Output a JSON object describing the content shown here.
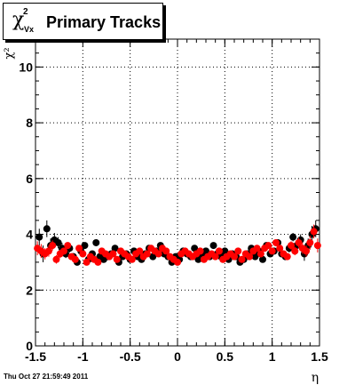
{
  "title": {
    "symbol": "χ",
    "superscript": "2",
    "subscript": "Vx",
    "text": "Primary Tracks"
  },
  "timestamp": "Thu Oct 27 21:59:49 2011",
  "chart_data": {
    "type": "scatter",
    "xlabel": "η",
    "ylabel": "χ²",
    "xlim": [
      -1.5,
      1.5
    ],
    "ylim": [
      0,
      11
    ],
    "xticks": [
      -1.5,
      -1,
      -0.5,
      0,
      0.5,
      1,
      1.5
    ],
    "xtick_labels": [
      "-1.5",
      "-1",
      "-0.5",
      "0",
      "0.5",
      "1",
      "1.5"
    ],
    "yticks": [
      0,
      2,
      4,
      6,
      8,
      10
    ],
    "ytick_labels": [
      "0",
      "2",
      "4",
      "6",
      "8",
      "10"
    ],
    "grid": true,
    "series": [
      {
        "color": "#000000",
        "x": [
          -1.46,
          -1.42,
          -1.38,
          -1.34,
          -1.3,
          -1.26,
          -1.22,
          -1.18,
          -1.14,
          -1.1,
          -1.06,
          -1.02,
          -0.98,
          -0.94,
          -0.9,
          -0.86,
          -0.82,
          -0.78,
          -0.74,
          -0.7,
          -0.66,
          -0.62,
          -0.58,
          -0.54,
          -0.5,
          -0.46,
          -0.42,
          -0.38,
          -0.34,
          -0.3,
          -0.26,
          -0.22,
          -0.18,
          -0.14,
          -0.1,
          -0.06,
          -0.02,
          0.02,
          0.06,
          0.1,
          0.14,
          0.18,
          0.22,
          0.26,
          0.3,
          0.34,
          0.38,
          0.42,
          0.46,
          0.5,
          0.54,
          0.58,
          0.62,
          0.66,
          0.7,
          0.74,
          0.78,
          0.82,
          0.86,
          0.9,
          0.94,
          0.98,
          1.02,
          1.06,
          1.1,
          1.14,
          1.18,
          1.22,
          1.26,
          1.3,
          1.34,
          1.38,
          1.42,
          1.46
        ],
        "y": [
          3.9,
          3.3,
          4.2,
          3.6,
          3.8,
          3.7,
          3.5,
          3.3,
          3.5,
          3.2,
          3.0,
          3.4,
          3.6,
          3.1,
          3.3,
          3.7,
          3.2,
          3.1,
          3.2,
          3.3,
          3.5,
          3.0,
          3.2,
          3.3,
          3.1,
          3.4,
          3.2,
          3.1,
          3.3,
          3.5,
          3.2,
          3.4,
          3.6,
          3.3,
          3.2,
          3.0,
          3.2,
          3.1,
          3.4,
          3.3,
          3.2,
          3.5,
          3.1,
          3.3,
          3.4,
          3.2,
          3.6,
          3.3,
          3.2,
          3.4,
          3.1,
          3.3,
          3.2,
          3.0,
          3.1,
          3.3,
          3.5,
          3.2,
          3.4,
          3.1,
          3.6,
          3.3,
          3.4,
          3.7,
          3.3,
          3.2,
          3.5,
          3.9,
          3.6,
          3.8,
          3.3,
          3.6,
          4.0,
          4.2
        ],
        "yerr": [
          0.3,
          0.3,
          0.3,
          0.25,
          0.25,
          0.2,
          0.2,
          0.15,
          0.15,
          0.12,
          0.12,
          0.1,
          0.1,
          0.08,
          0.08,
          0.08,
          0.08,
          0.08,
          0.08,
          0.08,
          0.08,
          0.08,
          0.08,
          0.08,
          0.08,
          0.08,
          0.08,
          0.08,
          0.08,
          0.08,
          0.08,
          0.08,
          0.08,
          0.08,
          0.08,
          0.08,
          0.08,
          0.08,
          0.08,
          0.08,
          0.08,
          0.08,
          0.08,
          0.08,
          0.08,
          0.08,
          0.08,
          0.08,
          0.08,
          0.08,
          0.08,
          0.08,
          0.08,
          0.08,
          0.08,
          0.08,
          0.08,
          0.08,
          0.08,
          0.08,
          0.08,
          0.08,
          0.1,
          0.1,
          0.12,
          0.12,
          0.15,
          0.15,
          0.2,
          0.2,
          0.25,
          0.25,
          0.3,
          0.3
        ]
      },
      {
        "color": "#ff0000",
        "x": [
          -1.48,
          -1.44,
          -1.4,
          -1.36,
          -1.32,
          -1.28,
          -1.24,
          -1.2,
          -1.16,
          -1.12,
          -1.08,
          -1.04,
          -1.0,
          -0.96,
          -0.92,
          -0.88,
          -0.84,
          -0.8,
          -0.76,
          -0.72,
          -0.68,
          -0.64,
          -0.6,
          -0.56,
          -0.52,
          -0.48,
          -0.44,
          -0.4,
          -0.36,
          -0.32,
          -0.28,
          -0.24,
          -0.2,
          -0.16,
          -0.12,
          -0.08,
          -0.04,
          0.0,
          0.04,
          0.08,
          0.12,
          0.16,
          0.2,
          0.24,
          0.28,
          0.32,
          0.36,
          0.4,
          0.44,
          0.48,
          0.52,
          0.56,
          0.6,
          0.64,
          0.68,
          0.72,
          0.76,
          0.8,
          0.84,
          0.88,
          0.92,
          0.96,
          1.0,
          1.04,
          1.08,
          1.12,
          1.16,
          1.2,
          1.24,
          1.28,
          1.32,
          1.36,
          1.4,
          1.44,
          1.48
        ],
        "y": [
          3.5,
          3.4,
          3.3,
          3.4,
          3.6,
          3.1,
          3.3,
          3.4,
          3.6,
          3.2,
          3.1,
          3.5,
          3.3,
          3.0,
          3.2,
          3.1,
          3.0,
          3.4,
          3.3,
          3.2,
          3.3,
          3.1,
          3.4,
          3.3,
          3.2,
          3.1,
          3.3,
          3.4,
          3.2,
          3.3,
          3.5,
          3.4,
          3.3,
          3.5,
          3.4,
          3.2,
          3.1,
          3.0,
          3.3,
          3.4,
          3.3,
          3.2,
          3.3,
          3.4,
          3.1,
          3.2,
          3.3,
          3.2,
          3.4,
          3.1,
          3.2,
          3.3,
          3.2,
          3.4,
          3.1,
          3.3,
          3.2,
          3.4,
          3.5,
          3.3,
          3.5,
          3.6,
          3.4,
          3.7,
          3.5,
          3.3,
          3.2,
          3.6,
          3.4,
          3.7,
          3.5,
          3.4,
          3.7,
          4.1,
          3.6
        ],
        "yerr": [
          0.25,
          0.25,
          0.2,
          0.2,
          0.18,
          0.15,
          0.15,
          0.12,
          0.12,
          0.1,
          0.1,
          0.08,
          0.08,
          0.08,
          0.08,
          0.08,
          0.08,
          0.08,
          0.08,
          0.08,
          0.08,
          0.08,
          0.08,
          0.08,
          0.08,
          0.08,
          0.08,
          0.08,
          0.08,
          0.08,
          0.08,
          0.08,
          0.08,
          0.08,
          0.08,
          0.08,
          0.08,
          0.08,
          0.08,
          0.08,
          0.08,
          0.08,
          0.08,
          0.08,
          0.08,
          0.08,
          0.08,
          0.08,
          0.08,
          0.08,
          0.08,
          0.08,
          0.08,
          0.08,
          0.08,
          0.08,
          0.08,
          0.08,
          0.08,
          0.08,
          0.08,
          0.08,
          0.08,
          0.1,
          0.1,
          0.12,
          0.12,
          0.15,
          0.15,
          0.18,
          0.2,
          0.2,
          0.25,
          0.25,
          0.25
        ]
      }
    ]
  }
}
